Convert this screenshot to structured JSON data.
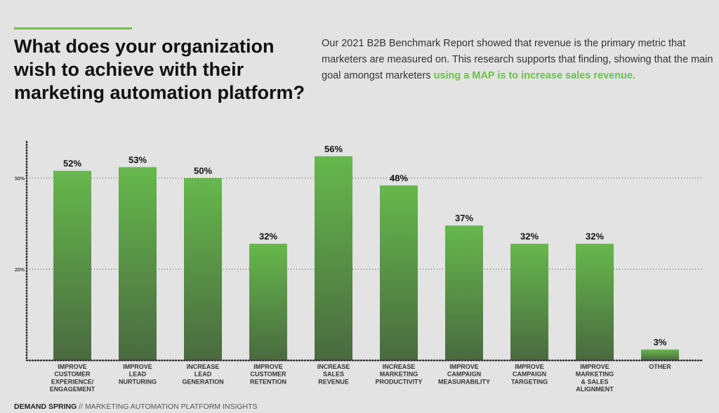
{
  "title": "What does your organization wish to achieve with their marketing automation platform?",
  "intro": {
    "text": "Our 2021 B2B Benchmark Report showed that revenue is the primary metric that marketers are measured on. This research supports that finding, showing that the main goal amongst marketers ",
    "highlight": "using a MAP is to increase sales revenue."
  },
  "footer": {
    "brand": "DEMAND SPRING",
    "separator": " // ",
    "subtitle": "MARKETING AUTOMATION PLATFORM INSIGHTS"
  },
  "colors": {
    "accent": "#6cc04a",
    "bar_top": "#66b84c",
    "bar_bottom": "#4a6a40"
  },
  "chart_data": {
    "type": "bar",
    "categories": [
      [
        "IMPROVE",
        "CUSTOMER",
        "EXPERIENCE/",
        "ENGAGEMENT"
      ],
      [
        "IMPROVE",
        "LEAD",
        "NURTURING"
      ],
      [
        "INCREASE",
        "LEAD",
        "GENERATION"
      ],
      [
        "IMPROVE",
        "CUSTOMER",
        "RETENTION"
      ],
      [
        "INCREASE",
        "SALES",
        "REVENUE"
      ],
      [
        "INCREASE",
        "MARKETING",
        "PRODUCTIVITY"
      ],
      [
        "IMPROVE",
        "CAMPAIGN",
        "MEASURABILITY"
      ],
      [
        "IMPROVE",
        "CAMPAIGN",
        "TARGETING"
      ],
      [
        "IMPROVE",
        "MARKETING",
        "& SALES",
        "ALIGNMENT"
      ],
      [
        "OTHER"
      ]
    ],
    "values": [
      52,
      53,
      50,
      32,
      56,
      48,
      37,
      32,
      32,
      3
    ],
    "data_labels": [
      "52%",
      "53%",
      "50%",
      "32%",
      "56%",
      "48%",
      "37%",
      "32%",
      "32%",
      "3%"
    ],
    "yticks": [
      {
        "value": 25,
        "label": "25%"
      },
      {
        "value": 50,
        "label": "50%"
      }
    ],
    "ylim": [
      0,
      60
    ],
    "grid": true
  }
}
